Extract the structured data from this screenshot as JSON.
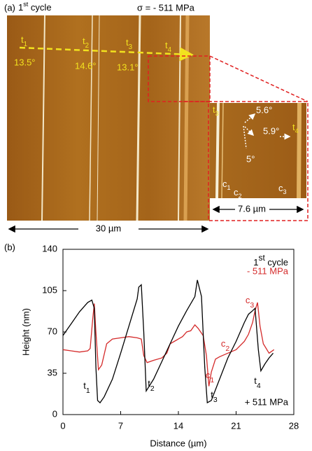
{
  "image_panel": {
    "label": "(a)",
    "title": {
      "text": "1",
      "sup": "st",
      "rest": " cycle"
    },
    "stress": "σ = - 511 MPa",
    "twin_labels": [
      {
        "text": "t",
        "sub": "1"
      },
      {
        "text": "t",
        "sub": "2"
      },
      {
        "text": "t",
        "sub": "3"
      },
      {
        "text": "t",
        "sub": "4"
      }
    ],
    "angles": [
      "13.5°",
      "14.6°",
      "13.1°"
    ],
    "inset": {
      "twin_labels": [
        {
          "text": "t",
          "sub": "3"
        },
        {
          "text": "t",
          "sub": "4"
        }
      ],
      "angles": [
        "5.6°",
        "5.9°",
        "5°"
      ],
      "c_labels": [
        {
          "text": "c",
          "sub": "1"
        },
        {
          "text": "c",
          "sub": "2"
        },
        {
          "text": "c",
          "sub": "3"
        }
      ],
      "scale": "7.6 µm"
    },
    "scale": "30 µm"
  },
  "chart_data": {
    "type": "line",
    "panel_label": "(b)",
    "title": {
      "text": "1",
      "sup": "st",
      "rest": " cycle"
    },
    "x_label": "Distance (µm)",
    "y_label": "Height (nm)",
    "xlim": [
      0,
      28
    ],
    "ylim": [
      0,
      140
    ],
    "xticks": [
      0,
      7,
      14,
      21,
      28
    ],
    "yticks": [
      0,
      35,
      70,
      105,
      140
    ],
    "series": [
      {
        "name": "+ 511 MPa",
        "color": "#000000",
        "x": [
          0,
          0.5,
          1,
          1.5,
          2,
          2.5,
          3,
          3.5,
          3.8,
          4.0,
          4.2,
          4.5,
          5,
          6,
          7,
          8,
          9,
          9.2,
          9.5,
          9.8,
          10.1,
          11,
          12,
          13,
          14,
          15,
          16,
          16.3,
          16.8,
          17.2,
          17.5,
          18,
          19,
          20,
          21,
          22,
          22.5,
          23,
          23.3,
          23.7,
          24,
          24.5,
          25,
          25.5
        ],
        "values": [
          67,
          72,
          77,
          82,
          87,
          91,
          95,
          97,
          90,
          40,
          12,
          10,
          15,
          30,
          52,
          75,
          98,
          108,
          110,
          70,
          20,
          30,
          45,
          60,
          75,
          88,
          100,
          114,
          100,
          40,
          10,
          12,
          30,
          48,
          62,
          78,
          85,
          88,
          90,
          55,
          37,
          43,
          48,
          52
        ]
      },
      {
        "name": "- 511 MPa",
        "color": "#d42a2a",
        "x": [
          0,
          1,
          2,
          3,
          3.3,
          3.6,
          3.8,
          4.0,
          4.3,
          4.7,
          5.3,
          6,
          7,
          8,
          9,
          9.5,
          9.8,
          10.2,
          11,
          12,
          12.6,
          13,
          13.5,
          14,
          14.5,
          15,
          15.5,
          16,
          16.4,
          17,
          17.4,
          17.7,
          18,
          18.5,
          19,
          20,
          21,
          22,
          22.5,
          23,
          23.3,
          23.6,
          23.9,
          24.3,
          25,
          25.6
        ],
        "values": [
          55,
          54,
          53,
          54,
          56,
          80,
          94,
          70,
          38,
          42,
          60,
          64,
          65,
          66,
          65,
          64,
          50,
          44,
          46,
          48,
          52,
          60,
          62,
          64,
          66,
          70,
          71,
          76,
          73,
          67,
          50,
          24,
          36,
          47,
          49,
          52,
          55,
          62,
          68,
          78,
          88,
          95,
          75,
          60,
          52,
          55
        ]
      }
    ],
    "annotations": [
      {
        "text": "t",
        "sub": "1",
        "color": "#000000"
      },
      {
        "text": "t",
        "sub": "2",
        "color": "#000000"
      },
      {
        "text": "t",
        "sub": "3",
        "color": "#000000"
      },
      {
        "text": "t",
        "sub": "4",
        "color": "#000000"
      },
      {
        "text": "c",
        "sub": "1",
        "color": "#d42a2a"
      },
      {
        "text": "c",
        "sub": "2",
        "color": "#d42a2a"
      },
      {
        "text": "c",
        "sub": "3",
        "color": "#d42a2a"
      }
    ]
  }
}
